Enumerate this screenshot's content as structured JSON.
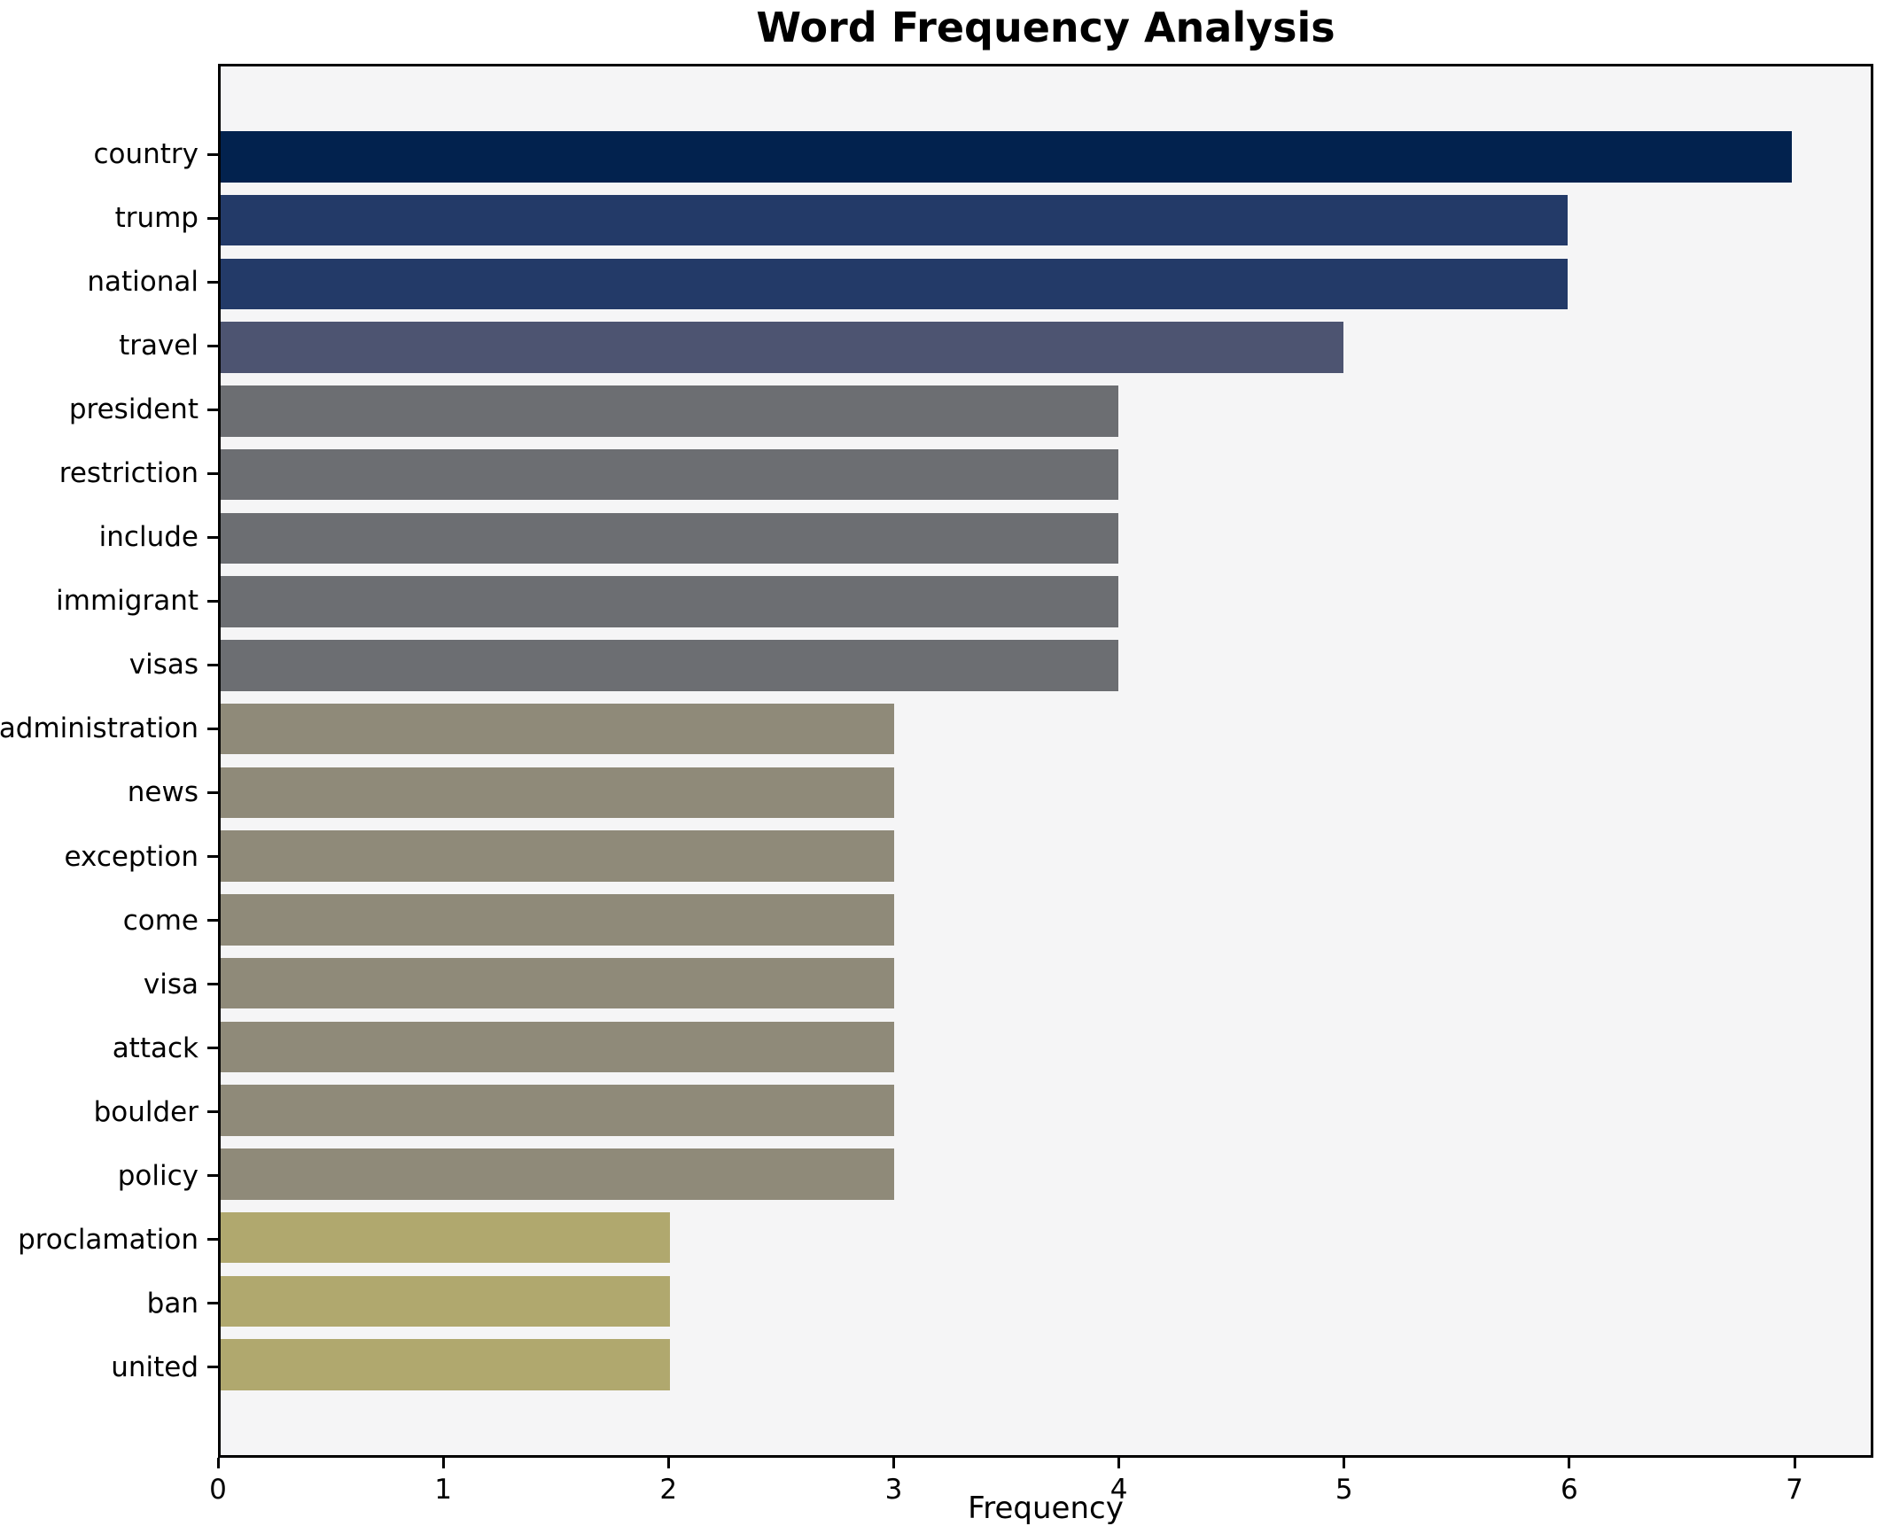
{
  "chart_data": {
    "type": "bar",
    "orientation": "horizontal",
    "title": "Word Frequency Analysis",
    "xlabel": "Frequency",
    "ylabel": "",
    "categories": [
      "country",
      "trump",
      "national",
      "travel",
      "president",
      "restriction",
      "include",
      "immigrant",
      "visas",
      "administration",
      "news",
      "exception",
      "come",
      "visa",
      "attack",
      "boulder",
      "policy",
      "proclamation",
      "ban",
      "united"
    ],
    "values": [
      7,
      6,
      6,
      5,
      4,
      4,
      4,
      4,
      4,
      3,
      3,
      3,
      3,
      3,
      3,
      3,
      3,
      2,
      2,
      2
    ],
    "bar_colors": [
      "#02224E",
      "#233A68",
      "#233A68",
      "#4D5471",
      "#6C6E72",
      "#6C6E72",
      "#6C6E72",
      "#6C6E72",
      "#6C6E72",
      "#8F8A79",
      "#8F8A79",
      "#8F8A79",
      "#8F8A79",
      "#8F8A79",
      "#8F8A79",
      "#8F8A79",
      "#8F8A79",
      "#B0A86E",
      "#B0A86E",
      "#B0A86E"
    ],
    "xlim": [
      0,
      7.35
    ],
    "x_ticks": [
      0,
      1,
      2,
      3,
      4,
      5,
      6,
      7
    ],
    "grid": false,
    "legend_position": "none",
    "plot_background": "#F5F5F6",
    "figure_background": "#FFFFFF",
    "axis_color": "#000000"
  }
}
